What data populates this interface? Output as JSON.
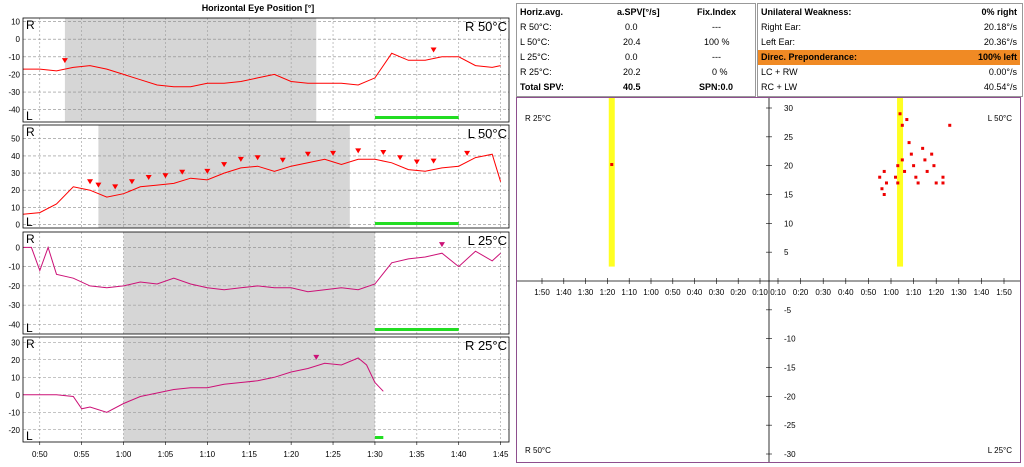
{
  "chart_data": [
    {
      "type": "line",
      "title": "Horizontal Eye Position [°]",
      "panels": [
        {
          "label": "R 50°C",
          "side_top": "R",
          "side_bottom": "L",
          "color": "#ff0000",
          "y_ticks": [
            10,
            0,
            -10,
            -20,
            -30,
            -40
          ],
          "ylim": [
            -47,
            12
          ],
          "gray_span": [
            "0:53",
            "1:23"
          ],
          "green_bar": [
            "1:30",
            "1:40"
          ],
          "series": [
            {
              "name": "",
              "x": [
                "0:48",
                "0:50",
                "0:52",
                "0:54",
                "0:56",
                "0:58",
                "1:00",
                "1:02",
                "1:04",
                "1:06",
                "1:08",
                "1:10",
                "1:12",
                "1:14",
                "1:16",
                "1:18",
                "1:20",
                "1:22",
                "1:24",
                "1:26",
                "1:28",
                "1:30",
                "1:32",
                "1:34",
                "1:36",
                "1:38",
                "1:40",
                "1:42",
                "1:44",
                "1:45"
              ],
              "y": [
                -17,
                -17,
                -18,
                -16,
                -15,
                -17,
                -20,
                -23,
                -26,
                -27,
                -27,
                -25,
                -25,
                -24,
                -22,
                -20,
                -24,
                -25,
                -25,
                -25,
                -26,
                -22,
                -8,
                -12,
                -12,
                -10,
                -10,
                -15,
                -16,
                -15
              ]
            }
          ],
          "markers_x": [
            "0:53",
            "1:37"
          ]
        },
        {
          "label": "L 50°C",
          "side_top": "R",
          "side_bottom": "L",
          "color": "#ff0000",
          "y_ticks": [
            50,
            40,
            30,
            20,
            10,
            0
          ],
          "ylim": [
            -2,
            58
          ],
          "gray_span": [
            "0:57",
            "1:27"
          ],
          "green_bar": [
            "1:30",
            "1:40"
          ],
          "series": [
            {
              "name": "",
              "x": [
                "0:48",
                "0:50",
                "0:52",
                "0:54",
                "0:56",
                "0:58",
                "1:00",
                "1:02",
                "1:04",
                "1:06",
                "1:08",
                "1:10",
                "1:12",
                "1:14",
                "1:16",
                "1:18",
                "1:20",
                "1:22",
                "1:24",
                "1:26",
                "1:28",
                "1:30",
                "1:32",
                "1:34",
                "1:36",
                "1:38",
                "1:40",
                "1:42",
                "1:44",
                "1:45"
              ],
              "y": [
                6,
                7,
                12,
                22,
                20,
                16,
                18,
                22,
                23,
                24,
                27,
                26,
                30,
                33,
                34,
                31,
                34,
                36,
                38,
                35,
                38,
                38,
                36,
                32,
                31,
                33,
                34,
                39,
                41,
                25
              ]
            }
          ],
          "markers_x": [
            "0:56",
            "0:57",
            "0:59",
            "1:01",
            "1:03",
            "1:05",
            "1:07",
            "1:10",
            "1:12",
            "1:14",
            "1:16",
            "1:19",
            "1:22",
            "1:25",
            "1:28",
            "1:31",
            "1:33",
            "1:35",
            "1:37",
            "1:41"
          ]
        },
        {
          "label": "L 25°C",
          "side_top": "R",
          "side_bottom": "L",
          "color": "#cc1177",
          "y_ticks": [
            0,
            -10,
            -20,
            -30,
            -40
          ],
          "ylim": [
            -45,
            8
          ],
          "gray_span": [
            "1:00",
            "1:30"
          ],
          "green_bar": [
            "1:30",
            "1:40"
          ],
          "series": [
            {
              "name": "",
              "x": [
                "0:48",
                "0:49",
                "0:50",
                "0:51",
                "0:52",
                "0:54",
                "0:56",
                "0:58",
                "1:00",
                "1:02",
                "1:04",
                "1:06",
                "1:08",
                "1:10",
                "1:12",
                "1:14",
                "1:16",
                "1:18",
                "1:20",
                "1:22",
                "1:24",
                "1:26",
                "1:28",
                "1:30",
                "1:32",
                "1:34",
                "1:36",
                "1:38",
                "1:40",
                "1:42",
                "1:44",
                "1:45"
              ],
              "y": [
                0,
                0,
                -12,
                0,
                -14,
                -16,
                -20,
                -21,
                -20,
                -18,
                -19,
                -16,
                -19,
                -21,
                -22,
                -21,
                -20,
                -21,
                -21,
                -23,
                -22,
                -21,
                -22,
                -19,
                -8,
                -6,
                -5,
                -3,
                -10,
                -2,
                -7,
                -3
              ]
            }
          ],
          "markers_x": [
            "1:38"
          ]
        },
        {
          "label": "R 25°C",
          "side_top": "R",
          "side_bottom": "L",
          "color": "#cc1177",
          "y_ticks": [
            30,
            20,
            10,
            0,
            -10,
            -20
          ],
          "ylim": [
            -27,
            33
          ],
          "gray_span": [
            "1:00",
            "1:30"
          ],
          "green_bar": [
            "1:30",
            "1:31"
          ],
          "series": [
            {
              "name": "",
              "x": [
                "0:48",
                "0:50",
                "0:52",
                "0:54",
                "0:55",
                "0:56",
                "0:58",
                "1:00",
                "1:02",
                "1:04",
                "1:06",
                "1:08",
                "1:10",
                "1:12",
                "1:14",
                "1:16",
                "1:18",
                "1:20",
                "1:22",
                "1:24",
                "1:26",
                "1:28",
                "1:29",
                "1:30",
                "1:31"
              ],
              "y": [
                0,
                0,
                0,
                -1,
                -8,
                -7,
                -10,
                -5,
                -1,
                1,
                3,
                4,
                4,
                6,
                7,
                8,
                10,
                13,
                15,
                18,
                17,
                21,
                17,
                7,
                2
              ]
            }
          ],
          "markers_x": [
            "1:23"
          ]
        }
      ],
      "x_ticks": [
        "0:50",
        "0:55",
        "1:00",
        "1:05",
        "1:10",
        "1:15",
        "1:20",
        "1:25",
        "1:30",
        "1:35",
        "1:40",
        "1:45"
      ],
      "grid": true
    },
    {
      "type": "scatter",
      "title": "",
      "corner_labels": {
        "top_left": "R 25°C",
        "top_right": "L 50°C",
        "bottom_left": "R 50°C",
        "bottom_right": "L 25°C"
      },
      "x_ticks_left": [
        "1:50",
        "1:40",
        "1:30",
        "1:20",
        "1:10",
        "1:00",
        "0:50",
        "0:40",
        "0:30",
        "0:20",
        "0:10"
      ],
      "x_ticks_right": [
        "0:10",
        "0:20",
        "0:30",
        "0:40",
        "0:50",
        "1:00",
        "1:10",
        "1:20",
        "1:30",
        "1:40",
        "1:50"
      ],
      "y_ticks": [
        30,
        25,
        20,
        15,
        10,
        5,
        -5,
        -10,
        -15,
        -20,
        -25,
        -30
      ],
      "ylim": [
        -30,
        30
      ],
      "yellow_bars": [
        {
          "quadrant": "top-left",
          "at": "1:18"
        },
        {
          "quadrant": "top-right",
          "at": "1:04"
        }
      ],
      "points_top_left": [
        {
          "x": "1:18",
          "y": 20.2
        }
      ],
      "points_top_right": [
        {
          "x": "0:55",
          "y": 18
        },
        {
          "x": "0:56",
          "y": 16
        },
        {
          "x": "0:57",
          "y": 19
        },
        {
          "x": "0:58",
          "y": 17
        },
        {
          "x": "0:57",
          "y": 15
        },
        {
          "x": "1:02",
          "y": 18
        },
        {
          "x": "1:03",
          "y": 20
        },
        {
          "x": "1:03",
          "y": 17
        },
        {
          "x": "1:04",
          "y": 29
        },
        {
          "x": "1:05",
          "y": 27
        },
        {
          "x": "1:05",
          "y": 21
        },
        {
          "x": "1:06",
          "y": 19
        },
        {
          "x": "1:07",
          "y": 28
        },
        {
          "x": "1:08",
          "y": 24
        },
        {
          "x": "1:09",
          "y": 22
        },
        {
          "x": "1:10",
          "y": 20
        },
        {
          "x": "1:11",
          "y": 18
        },
        {
          "x": "1:12",
          "y": 17
        },
        {
          "x": "1:14",
          "y": 23
        },
        {
          "x": "1:15",
          "y": 21
        },
        {
          "x": "1:16",
          "y": 19
        },
        {
          "x": "1:18",
          "y": 22
        },
        {
          "x": "1:19",
          "y": 20
        },
        {
          "x": "1:20",
          "y": 17
        },
        {
          "x": "1:23",
          "y": 18
        },
        {
          "x": "1:23",
          "y": 17
        },
        {
          "x": "1:26",
          "y": 27
        }
      ]
    }
  ],
  "summary": {
    "left_header": {
      "c1": "Horiz.avg.",
      "c2": "a.SPV[°/s]",
      "c3": "Fix.Index"
    },
    "left_rows": [
      {
        "label": "R 50°C:",
        "spv": "0.0",
        "fix": "---"
      },
      {
        "label": "L 50°C:",
        "spv": "20.4",
        "fix": "100 %"
      },
      {
        "label": "L 25°C:",
        "spv": "0.0",
        "fix": "---"
      },
      {
        "label": "R 25°C:",
        "spv": "20.2",
        "fix": "0 %"
      }
    ],
    "total": {
      "label": "Total SPV:",
      "spv": "40.5",
      "fix": "SPN:0.0"
    },
    "right_header": {
      "label": "Unilateral Weakness:",
      "value": "0% right"
    },
    "right_rows": [
      {
        "label": "Right Ear:",
        "value": "20.18°/s"
      },
      {
        "label": "Left Ear:",
        "value": "20.36°/s"
      }
    ],
    "highlight": {
      "label": "Direc. Preponderance:",
      "value": "100% left",
      "color": "#f08a24"
    },
    "lc_rw": {
      "label": "LC + RW",
      "value": "0.00°/s"
    },
    "rc_lw": {
      "label": "RC + LW",
      "value": "40.54°/s"
    }
  }
}
